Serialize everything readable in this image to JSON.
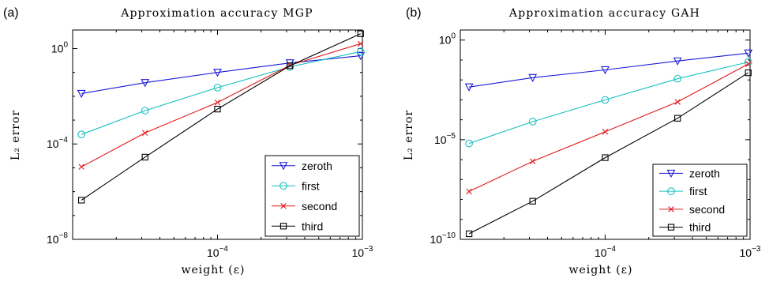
{
  "chart_data": [
    {
      "panel_label": "(a)",
      "type": "line",
      "title": "Approximation accuracy MGP",
      "xlabel": "weight (ε)",
      "ylabel": "L₂ error",
      "xscale": "log",
      "yscale": "log",
      "xlim": [
        1e-05,
        0.001
      ],
      "ylim": [
        1e-08,
        6
      ],
      "x_ticks": [
        {
          "value": 0.0001,
          "base": "10",
          "exp": "−4"
        },
        {
          "value": 0.001,
          "base": "10",
          "exp": "−3"
        }
      ],
      "y_ticks": [
        {
          "value": 1e-08,
          "base": "10",
          "exp": "−8"
        },
        {
          "value": 0.0001,
          "base": "10",
          "exp": "−4"
        },
        {
          "value": 1,
          "base": "10",
          "exp": "0"
        }
      ],
      "grid": false,
      "legend_position": "bottom-right",
      "x": [
        1.15e-05,
        3.16e-05,
        0.0001,
        0.000316,
        0.000972
      ],
      "series": [
        {
          "name": "zeroth",
          "color": "#1a1ad8",
          "marker": "triangle-down",
          "values": [
            0.013,
            0.037,
            0.1,
            0.25,
            0.5
          ]
        },
        {
          "name": "first",
          "color": "#17bfbf",
          "marker": "circle",
          "values": [
            0.00025,
            0.0025,
            0.023,
            0.17,
            0.75
          ]
        },
        {
          "name": "second",
          "color": "#e01a1a",
          "marker": "x",
          "values": [
            1.1e-05,
            0.00029,
            0.0055,
            0.2,
            1.6
          ]
        },
        {
          "name": "third",
          "color": "#000000",
          "marker": "square",
          "values": [
            4.4e-07,
            2.8e-05,
            0.0029,
            0.19,
            4.2
          ]
        }
      ]
    },
    {
      "panel_label": "(b)",
      "type": "line",
      "title": "Approximation accuracy GAH",
      "xlabel": "weight (ε)",
      "ylabel": "L₂ error",
      "xscale": "log",
      "yscale": "log",
      "xlim": [
        1e-05,
        0.001
      ],
      "ylim": [
        1e-10,
        3.2
      ],
      "x_ticks": [
        {
          "value": 0.0001,
          "base": "10",
          "exp": "−4"
        },
        {
          "value": 0.001,
          "base": "10",
          "exp": "−3"
        }
      ],
      "y_ticks": [
        {
          "value": 1e-10,
          "base": "10",
          "exp": "−10"
        },
        {
          "value": 1e-05,
          "base": "10",
          "exp": "−5"
        },
        {
          "value": 1,
          "base": "10",
          "exp": "0"
        }
      ],
      "grid": false,
      "legend_position": "bottom-right",
      "x": [
        1.15e-05,
        3.16e-05,
        0.0001,
        0.000316,
        0.000972
      ],
      "series": [
        {
          "name": "zeroth",
          "color": "#1a1ad8",
          "marker": "triangle-down",
          "values": [
            0.0044,
            0.013,
            0.032,
            0.089,
            0.22
          ]
        },
        {
          "name": "first",
          "color": "#17bfbf",
          "marker": "circle",
          "values": [
            6.5e-06,
            8.1e-05,
            0.001,
            0.0115,
            0.079
          ]
        },
        {
          "name": "second",
          "color": "#e01a1a",
          "marker": "x",
          "values": [
            2.53e-08,
            8.2e-07,
            2.5e-05,
            0.00079,
            0.063
          ]
        },
        {
          "name": "third",
          "color": "#000000",
          "marker": "square",
          "values": [
            1.905e-10,
            8.2e-09,
            1.26e-06,
            0.000119,
            0.0229
          ]
        }
      ]
    }
  ]
}
